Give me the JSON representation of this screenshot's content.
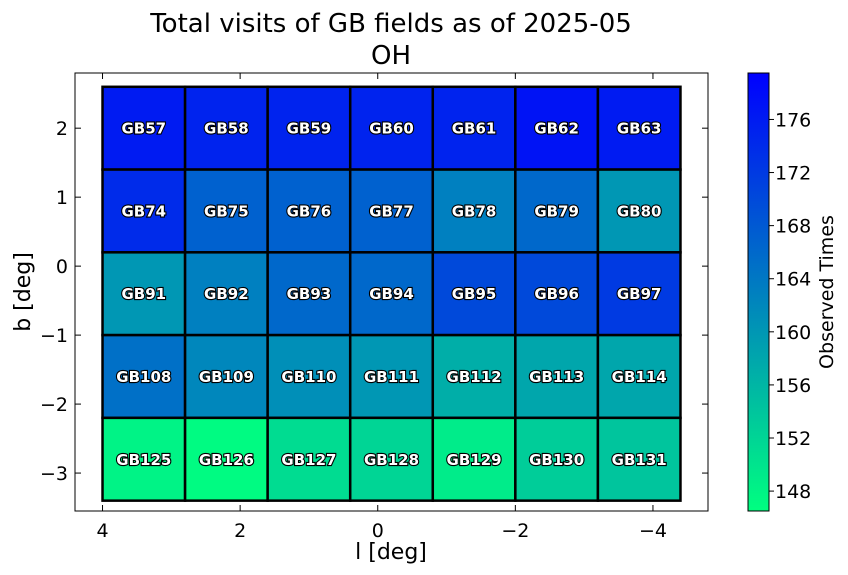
{
  "chart_data": {
    "type": "heatmap",
    "title": "Total visits of GB fields as of 2025-05",
    "subtitle": "OH",
    "xlabel": "l [deg]",
    "ylabel": "b [deg]",
    "xlim": [
      4.4,
      -4.8
    ],
    "ylim": [
      -3.55,
      2.8
    ],
    "x_ticks": [
      4,
      2,
      0,
      -2,
      -4
    ],
    "x_tick_labels": [
      "4",
      "2",
      "0",
      "−2",
      "−4"
    ],
    "y_ticks": [
      2,
      1,
      0,
      -1,
      -2,
      -3
    ],
    "y_tick_labels": [
      "2",
      "1",
      "0",
      "−1",
      "−2",
      "−3"
    ],
    "colorbar": {
      "label": "Observed Times",
      "range": [
        146.5,
        179.5
      ],
      "ticks": [
        148,
        152,
        156,
        160,
        164,
        168,
        172,
        176
      ],
      "colormap": "winter_r",
      "color_low": "#00ff80",
      "color_high": "#0000ff"
    },
    "cell_width_deg": 1.2,
    "cell_height_deg": 1.2,
    "l_centers": [
      3.4,
      2.2,
      1.0,
      -0.2,
      -1.4,
      -2.6,
      -3.8
    ],
    "b_centers": [
      2.0,
      0.8,
      -0.4,
      -1.6,
      -2.8
    ],
    "rows": [
      {
        "b": 2.0,
        "fields": [
          "GB57",
          "GB58",
          "GB59",
          "GB60",
          "GB61",
          "GB62",
          "GB63"
        ],
        "values": [
          176,
          175,
          175,
          175,
          175,
          177,
          176
        ]
      },
      {
        "b": 0.8,
        "fields": [
          "GB74",
          "GB75",
          "GB76",
          "GB77",
          "GB78",
          "GB79",
          "GB80"
        ],
        "values": [
          174,
          167,
          167,
          167,
          163,
          166,
          160
        ]
      },
      {
        "b": -0.4,
        "fields": [
          "GB91",
          "GB92",
          "GB93",
          "GB94",
          "GB95",
          "GB96",
          "GB97"
        ],
        "values": [
          160,
          163,
          166,
          166,
          170,
          170,
          172
        ]
      },
      {
        "b": -1.6,
        "fields": [
          "GB108",
          "GB109",
          "GB110",
          "GB111",
          "GB112",
          "GB113",
          "GB114"
        ],
        "values": [
          165,
          162,
          161,
          160,
          157,
          158,
          158
        ]
      },
      {
        "b": -2.8,
        "fields": [
          "GB125",
          "GB126",
          "GB127",
          "GB128",
          "GB129",
          "GB130",
          "GB131"
        ],
        "values": [
          148,
          147,
          151,
          152,
          149,
          153,
          154
        ]
      }
    ]
  }
}
